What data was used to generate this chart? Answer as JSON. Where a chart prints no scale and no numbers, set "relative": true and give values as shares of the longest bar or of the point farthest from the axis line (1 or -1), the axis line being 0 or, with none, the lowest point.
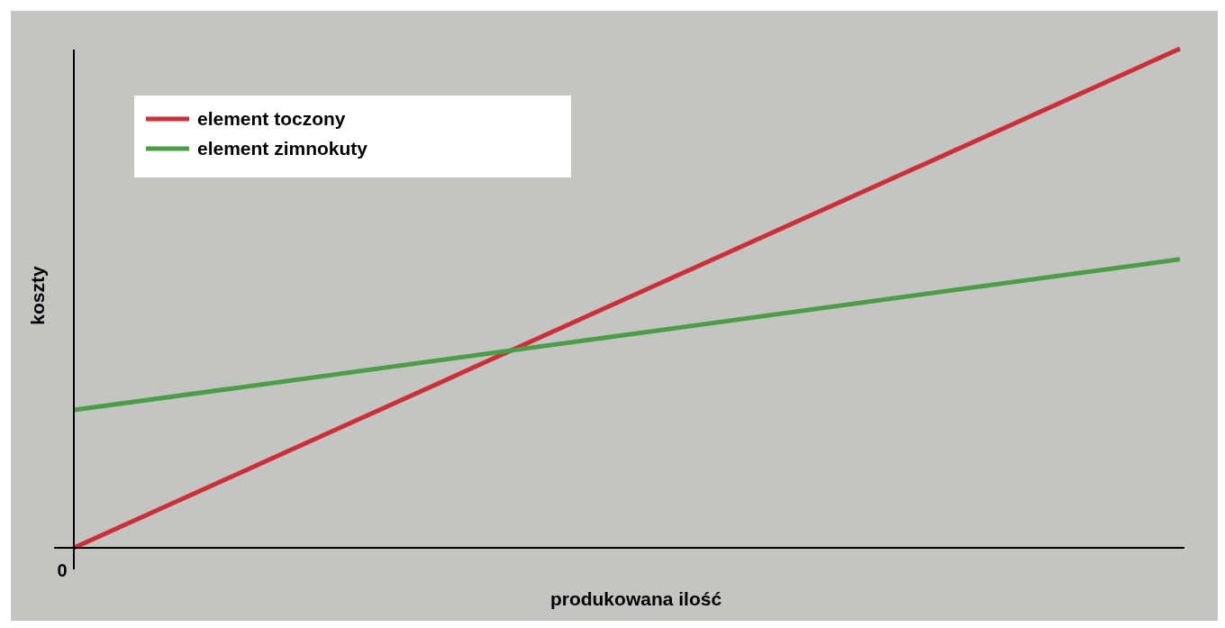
{
  "chart_data": {
    "type": "line",
    "relative": true,
    "xlabel": "produkowana ilość",
    "ylabel": "koszty",
    "annotations": [
      "0"
    ],
    "categories": [
      null,
      null,
      null
    ],
    "series": [
      {
        "name": "element toczony",
        "color": "#cc3036",
        "values": [
          0,
          0.5,
          1
        ]
      },
      {
        "name": "element zimnokuty",
        "color": "#4c9d47",
        "values": [
          0.276,
          0.427,
          0.578
        ]
      }
    ],
    "legend": "top left",
    "marker": "none",
    "line_style": "solid"
  }
}
